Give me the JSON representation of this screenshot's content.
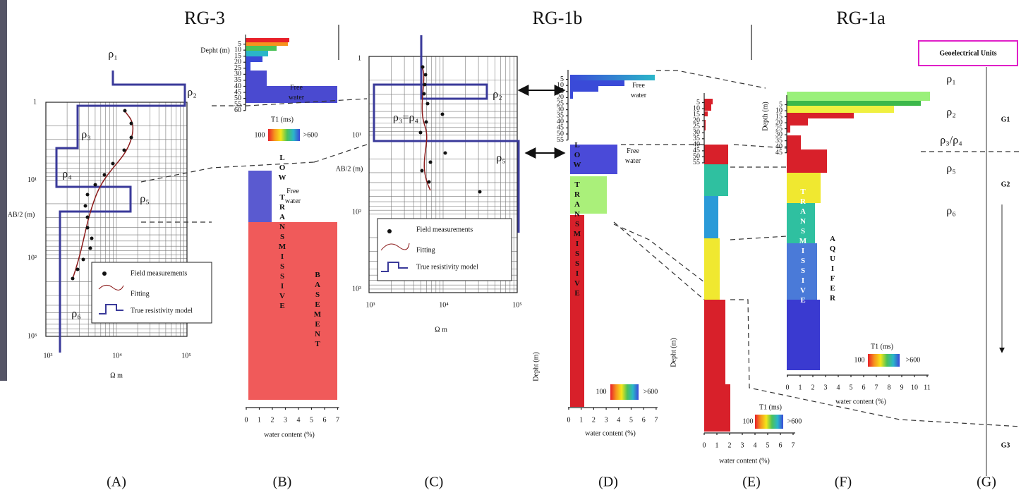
{
  "titles": [
    "RG-3",
    "RG-1b",
    "RG-1a"
  ],
  "panel_labels": [
    "(A)",
    "(B)",
    "(C)",
    "(D)",
    "(E)",
    "(F)",
    "(G)"
  ],
  "legend": {
    "measurements": "Field measurements",
    "fitting": "Fitting",
    "model": "True resistivity model"
  },
  "panel_a": {
    "rho": [
      "ρ₁",
      "ρ₂",
      "ρ₃",
      "ρ₄",
      "ρ₅",
      "ρ₆"
    ],
    "y_ticks": [
      1,
      "10¹",
      "10²",
      "10³"
    ],
    "x_ticks": [
      "10³",
      "10⁴",
      "10⁵"
    ],
    "y_label": "AB/2 (m)",
    "x_label": "Ω m"
  },
  "panel_b": {
    "y_label": "Depht (m)",
    "y_ticks": [
      5,
      10,
      15,
      20,
      25,
      30,
      35,
      40,
      45,
      50,
      55,
      60
    ],
    "x_ticks": [
      0,
      1,
      2,
      3,
      4,
      5,
      6,
      7
    ],
    "x_label": "water content (%)",
    "free_water": [
      "Free water",
      "Free water"
    ],
    "t1": "T1 (ms)",
    "t1_min": "100",
    "t1_max": ">600",
    "low": "LOW TRANSMISSIVE",
    "basement": "BASEMENT"
  },
  "panel_c": {
    "rho": [
      "ρ₂",
      "ρ₃=ρ₄",
      "ρ₅"
    ],
    "y_ticks": [
      1,
      "10¹",
      "10²",
      "10³"
    ],
    "x_ticks": [
      "10³",
      "10⁴",
      "10⁵"
    ],
    "y_label": "AB/2 (m)",
    "x_label": "Ω m"
  },
  "panel_d": {
    "y_label": "Depht (m)",
    "y_ticks": [
      5,
      10,
      15,
      20,
      25,
      30,
      35,
      40,
      45,
      50,
      55
    ],
    "x_ticks": [
      0,
      1,
      2,
      3,
      4,
      5,
      6,
      7
    ],
    "x_label": "water content (%)",
    "free_water": [
      "Free water",
      "Free water"
    ],
    "t1_min": "100",
    "t1_max": ">600",
    "low": "LOW TRANSMISSIVE"
  },
  "panel_e": {
    "y_label": "Depht (m)",
    "y_ticks": [
      5,
      10,
      15,
      20,
      25,
      30,
      35,
      40,
      45,
      50,
      55
    ],
    "x_ticks": [
      0,
      1,
      2,
      3,
      4,
      5,
      6,
      7
    ],
    "x_label": "water content (%)",
    "t1": "T1 (ms)",
    "t1_min": "100",
    "t1_max": ">600"
  },
  "panel_f": {
    "y_label": "Depth (m)",
    "y_ticks": [
      5,
      10,
      15,
      20,
      25,
      30,
      35,
      40,
      45
    ],
    "x_ticks": [
      0,
      1,
      2,
      3,
      4,
      5,
      6,
      7,
      8,
      9,
      10,
      11
    ],
    "x_label": "water content (%)",
    "t1": "T1 (ms)",
    "t1_min": "100",
    "t1_max": ">600",
    "transmissive": "TRANSMISSIVE",
    "aquifer": "AQUIFER"
  },
  "panel_g": {
    "header": "Geoelectrical Units",
    "rho": [
      "ρ₁",
      "ρ₂",
      "ρ₃/ρ₄",
      "ρ₅",
      "ρ₆"
    ],
    "units": [
      "G1",
      "G2",
      "G3"
    ]
  }
}
